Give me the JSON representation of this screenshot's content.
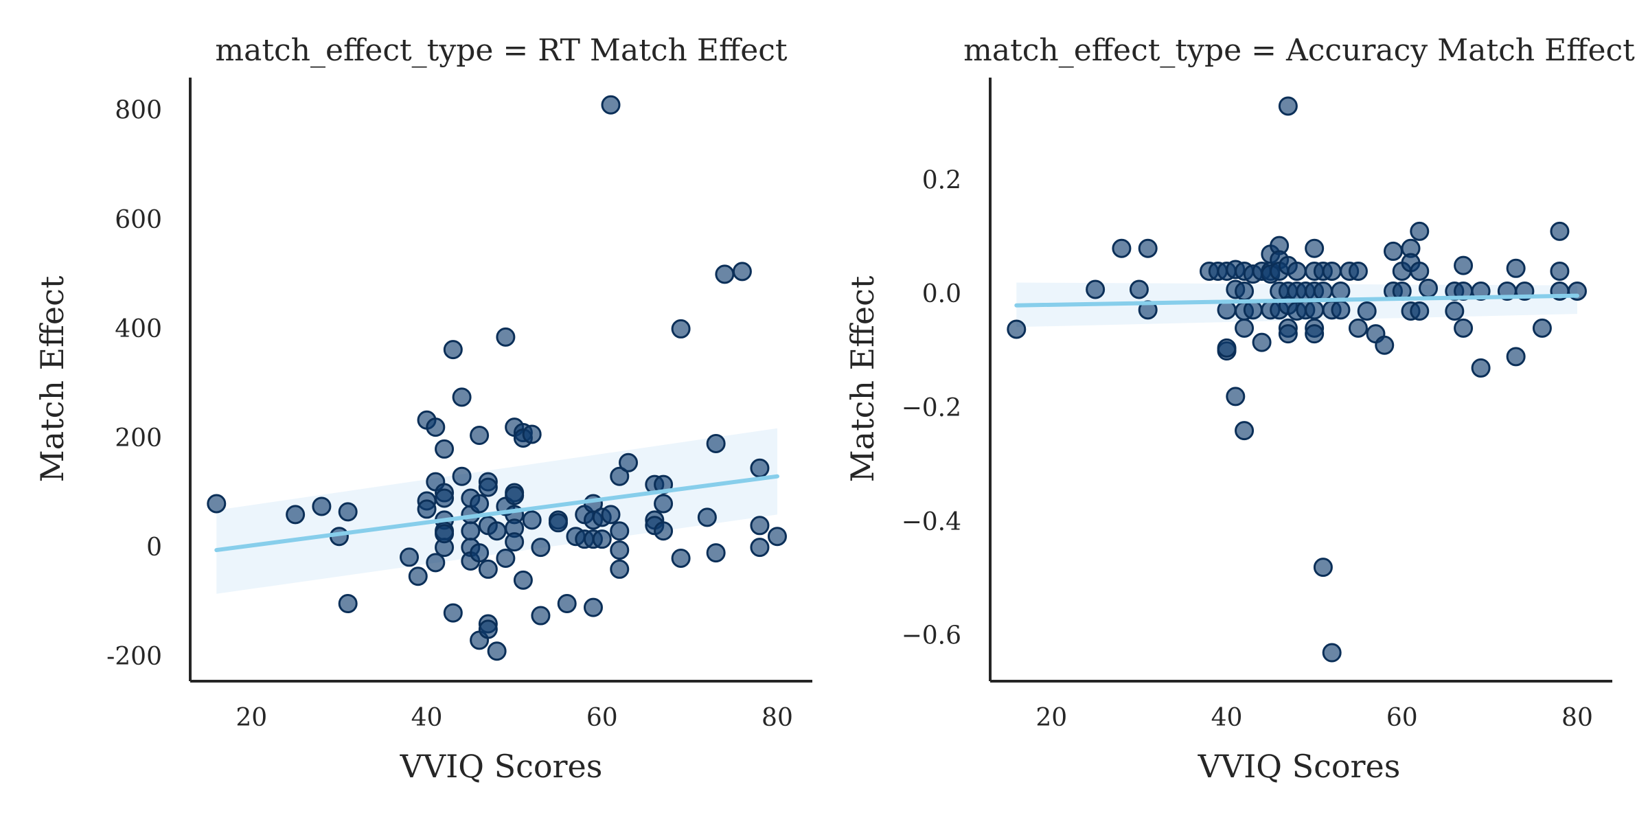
{
  "chart_data": [
    {
      "type": "scatter",
      "title": "match_effect_type = RT Match Effect",
      "xlabel": "VVIQ Scores",
      "ylabel": "Match Effect",
      "xlim": [
        13,
        84
      ],
      "ylim": [
        -245,
        860
      ],
      "xticks": [
        20,
        40,
        60,
        80
      ],
      "yticks": [
        -200,
        0,
        200,
        400,
        600,
        800
      ],
      "points": [
        [
          16,
          80
        ],
        [
          25,
          60
        ],
        [
          28,
          75
        ],
        [
          30,
          20
        ],
        [
          31,
          65
        ],
        [
          31,
          -103
        ],
        [
          38,
          -18
        ],
        [
          39,
          -53
        ],
        [
          40,
          233
        ],
        [
          40,
          85
        ],
        [
          40,
          70
        ],
        [
          41,
          220
        ],
        [
          41,
          120
        ],
        [
          41,
          -28
        ],
        [
          42,
          180
        ],
        [
          42,
          100
        ],
        [
          42,
          90
        ],
        [
          42,
          50
        ],
        [
          42,
          30
        ],
        [
          42,
          0
        ],
        [
          42,
          25
        ],
        [
          43,
          362
        ],
        [
          43,
          -120
        ],
        [
          44,
          275
        ],
        [
          44,
          130
        ],
        [
          45,
          90
        ],
        [
          45,
          60
        ],
        [
          45,
          30
        ],
        [
          45,
          0
        ],
        [
          45,
          -25
        ],
        [
          46,
          205
        ],
        [
          46,
          80
        ],
        [
          46,
          -10
        ],
        [
          46,
          -170
        ],
        [
          47,
          120
        ],
        [
          47,
          110
        ],
        [
          47,
          40
        ],
        [
          47,
          -40
        ],
        [
          47,
          -140
        ],
        [
          47,
          -150
        ],
        [
          48,
          -190
        ],
        [
          48,
          30
        ],
        [
          49,
          385
        ],
        [
          49,
          75
        ],
        [
          49,
          -20
        ],
        [
          50,
          220
        ],
        [
          50,
          100
        ],
        [
          50,
          95
        ],
        [
          50,
          60
        ],
        [
          50,
          35
        ],
        [
          50,
          10
        ],
        [
          51,
          210
        ],
        [
          51,
          200
        ],
        [
          51,
          -60
        ],
        [
          52,
          207
        ],
        [
          52,
          50
        ],
        [
          53,
          0
        ],
        [
          53,
          -125
        ],
        [
          55,
          50
        ],
        [
          55,
          45
        ],
        [
          56,
          -103
        ],
        [
          57,
          20
        ],
        [
          58,
          60
        ],
        [
          58,
          15
        ],
        [
          59,
          80
        ],
        [
          59,
          50
        ],
        [
          59,
          15
        ],
        [
          59,
          -110
        ],
        [
          60,
          15
        ],
        [
          60,
          55
        ],
        [
          61,
          60
        ],
        [
          61,
          810
        ],
        [
          62,
          130
        ],
        [
          62,
          30
        ],
        [
          62,
          -5
        ],
        [
          62,
          -40
        ],
        [
          63,
          155
        ],
        [
          66,
          115
        ],
        [
          66,
          50
        ],
        [
          66,
          40
        ],
        [
          67,
          115
        ],
        [
          67,
          80
        ],
        [
          67,
          30
        ],
        [
          69,
          400
        ],
        [
          69,
          -20
        ],
        [
          72,
          55
        ],
        [
          73,
          190
        ],
        [
          73,
          -10
        ],
        [
          74,
          500
        ],
        [
          76,
          505
        ],
        [
          78,
          145
        ],
        [
          78,
          40
        ],
        [
          78,
          0
        ],
        [
          80,
          20
        ]
      ],
      "fit": {
        "x": [
          16,
          80
        ],
        "y": [
          -5,
          130
        ],
        "ci_lower": [
          -85,
          60
        ],
        "ci_upper": [
          68,
          218
        ]
      }
    },
    {
      "type": "scatter",
      "title": "match_effect_type = Accuracy Match Effect",
      "xlabel": "VVIQ Scores",
      "ylabel": "Match Effect",
      "xlim": [
        13,
        84
      ],
      "ylim": [
        -0.68,
        0.38
      ],
      "xticks": [
        20,
        40,
        60,
        80
      ],
      "yticks": [
        -0.6,
        -0.4,
        -0.2,
        0.0,
        0.2
      ],
      "ytick_labels": [
        "−0.6",
        "−0.4",
        "−0.2",
        "0.0",
        "0.2"
      ],
      "points": [
        [
          16,
          -0.062
        ],
        [
          25,
          0.008
        ],
        [
          28,
          0.08
        ],
        [
          30,
          0.008
        ],
        [
          31,
          0.08
        ],
        [
          31,
          -0.028
        ],
        [
          38,
          0.04
        ],
        [
          39,
          0.04
        ],
        [
          40,
          0.04
        ],
        [
          40,
          -0.028
        ],
        [
          40,
          -0.1
        ],
        [
          40,
          -0.095
        ],
        [
          41,
          0.043
        ],
        [
          41,
          0.008
        ],
        [
          41,
          -0.18
        ],
        [
          42,
          0.04
        ],
        [
          42,
          0.005
        ],
        [
          42,
          -0.03
        ],
        [
          42,
          -0.06
        ],
        [
          42,
          -0.24
        ],
        [
          43,
          0.035
        ],
        [
          43,
          -0.028
        ],
        [
          44,
          0.04
        ],
        [
          44,
          -0.085
        ],
        [
          45,
          0.07
        ],
        [
          45,
          0.04
        ],
        [
          45,
          0.035
        ],
        [
          45,
          -0.028
        ],
        [
          46,
          0.085
        ],
        [
          46,
          0.06
        ],
        [
          46,
          0.04
        ],
        [
          46,
          0.005
        ],
        [
          46,
          -0.028
        ],
        [
          47,
          0.33
        ],
        [
          47,
          0.05
        ],
        [
          47,
          0.005
        ],
        [
          47,
          -0.02
        ],
        [
          47,
          -0.06
        ],
        [
          47,
          -0.07
        ],
        [
          48,
          0.04
        ],
        [
          48,
          0.005
        ],
        [
          48,
          -0.03
        ],
        [
          49,
          0.005
        ],
        [
          49,
          -0.028
        ],
        [
          50,
          0.08
        ],
        [
          50,
          0.04
        ],
        [
          50,
          0.005
        ],
        [
          50,
          -0.028
        ],
        [
          50,
          -0.06
        ],
        [
          50,
          -0.07
        ],
        [
          51,
          0.04
        ],
        [
          51,
          0.005
        ],
        [
          51,
          -0.48
        ],
        [
          52,
          0.04
        ],
        [
          52,
          -0.028
        ],
        [
          52,
          -0.63
        ],
        [
          53,
          0.005
        ],
        [
          53,
          -0.028
        ],
        [
          54,
          0.04
        ],
        [
          55,
          0.04
        ],
        [
          55,
          -0.06
        ],
        [
          56,
          -0.03
        ],
        [
          57,
          -0.07
        ],
        [
          58,
          -0.09
        ],
        [
          59,
          0.075
        ],
        [
          59,
          0.005
        ],
        [
          60,
          0.005
        ],
        [
          60,
          0.04
        ],
        [
          61,
          0.08
        ],
        [
          61,
          0.055
        ],
        [
          61,
          -0.03
        ],
        [
          62,
          0.11
        ],
        [
          62,
          0.04
        ],
        [
          62,
          -0.03
        ],
        [
          63,
          0.01
        ],
        [
          66,
          0.005
        ],
        [
          66,
          -0.03
        ],
        [
          67,
          0.05
        ],
        [
          67,
          0.005
        ],
        [
          67,
          -0.06
        ],
        [
          69,
          0.005
        ],
        [
          69,
          -0.13
        ],
        [
          72,
          0.005
        ],
        [
          73,
          0.045
        ],
        [
          73,
          -0.11
        ],
        [
          74,
          0.005
        ],
        [
          76,
          -0.06
        ],
        [
          78,
          0.11
        ],
        [
          78,
          0.04
        ],
        [
          78,
          0.005
        ],
        [
          80,
          0.005
        ]
      ],
      "fit": {
        "x": [
          16,
          80
        ],
        "y": [
          -0.02,
          -0.003
        ],
        "ci_lower": [
          -0.058,
          -0.035
        ],
        "ci_upper": [
          0.02,
          0.015
        ]
      }
    }
  ]
}
